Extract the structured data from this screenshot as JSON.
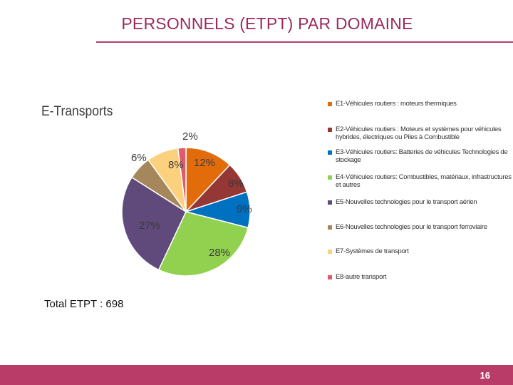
{
  "slide": {
    "title": "PERSONNELS (ETPT) PAR DOMAINE",
    "total_label": "Total ETPT : 698",
    "page_number": "16"
  },
  "colors": {
    "title": "#9a2a5e",
    "accent_bar": "#b83c67"
  },
  "chart_data": {
    "type": "pie",
    "title": "E-Transports",
    "slices": [
      {
        "label": "E1-Véhicules routiers : moteurs thermiques",
        "value": 12,
        "value_label": "12%",
        "color": "#e36c0a"
      },
      {
        "label": "E2-Véhicules routiers : Moteurs et systèmes pour véhicules hybrides, électriques ou Piles à Combustible",
        "value": 8,
        "value_label": "8%",
        "color": "#953735"
      },
      {
        "label": "E3-Véhicules routiers: Batteries de véhicules Technologies de stockage",
        "value": 9,
        "value_label": "9%",
        "color": "#0070c0"
      },
      {
        "label": "E4-Véhicules routiers: Combustibles, matériaux, infrastructures et autres",
        "value": 28,
        "value_label": "28%",
        "color": "#92d050"
      },
      {
        "label": "E5-Nouvelles technologies pour le transport aérien",
        "value": 27,
        "value_label": "27%",
        "color": "#604a7b"
      },
      {
        "label": "E6-Nouvelles technologies pour le transport ferroviaire",
        "value": 6,
        "value_label": "6%",
        "color": "#a6875c"
      },
      {
        "label": "E7-Systèmes de transport",
        "value": 8,
        "value_label": "8%",
        "color": "#fcd17d"
      },
      {
        "label": "E8-autre transport",
        "value": 2,
        "value_label": "2%",
        "color": "#e05a6d"
      }
    ]
  }
}
